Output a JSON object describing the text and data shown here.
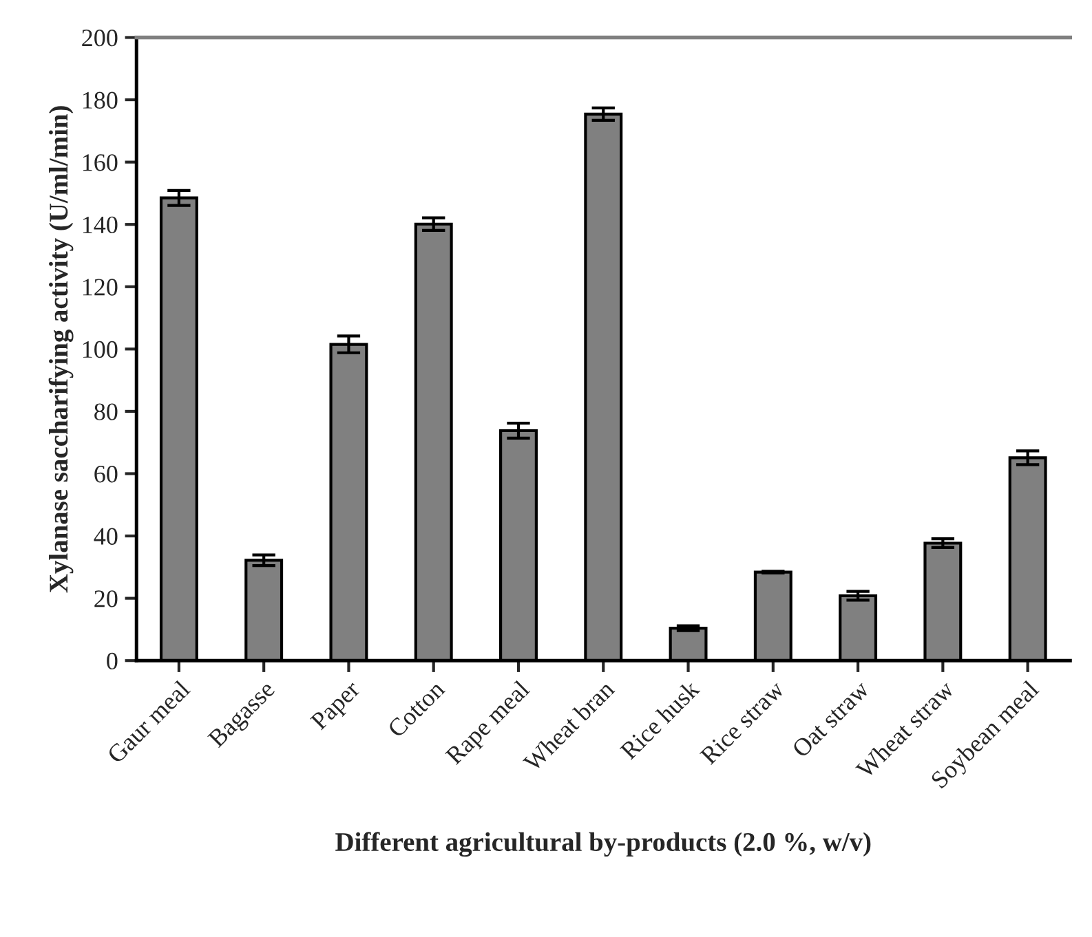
{
  "chart_data": {
    "type": "bar",
    "xlabel": "Different agricultural by-products (2.0 %, w/v)",
    "ylabel": "Xylanase saccharifying activity (U/ml/min)",
    "categories": [
      "Gaur meal",
      "Bagasse",
      "Paper",
      "Cotton",
      "Rape meal",
      "Wheat bran",
      "Rice husk",
      "Rice straw",
      "Oat straw",
      "Wheat straw",
      "Soybean meal"
    ],
    "values": [
      148.5,
      32.2,
      101.5,
      140.1,
      73.8,
      175.4,
      10.4,
      28.4,
      20.8,
      37.7,
      65.1
    ],
    "errors": [
      2.4,
      1.7,
      2.7,
      2,
      2.4,
      2,
      0.8,
      0.3,
      1.4,
      1.4,
      2.2
    ],
    "color": "#808080",
    "ylim": [
      0,
      200
    ],
    "yticks": [
      0,
      20,
      40,
      60,
      80,
      100,
      120,
      140,
      160,
      180,
      200
    ],
    "grid": false,
    "legend": false
  }
}
